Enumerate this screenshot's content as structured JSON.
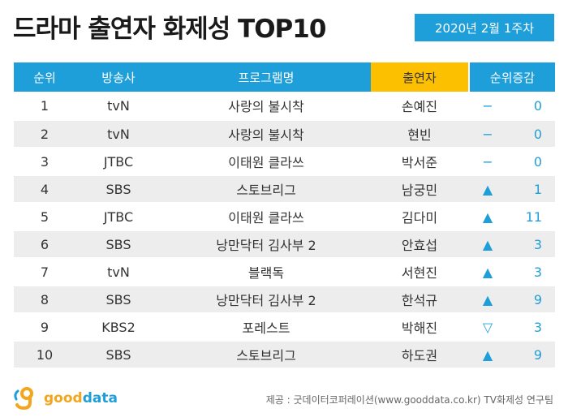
{
  "header": {
    "title": "드라마 출연자 화제성 TOP10",
    "week": "2020년 2월 1주차"
  },
  "table": {
    "columns": {
      "rank": "순위",
      "station": "방송사",
      "program": "프로그램명",
      "actor": "출연자",
      "change": "순위증감"
    },
    "rows": [
      {
        "rank": "1",
        "station": "tvN",
        "program": "사랑의 불시착",
        "actor": "손예진",
        "arrow": "−",
        "change": "0"
      },
      {
        "rank": "2",
        "station": "tvN",
        "program": "사랑의 불시착",
        "actor": "현빈",
        "arrow": "−",
        "change": "0"
      },
      {
        "rank": "3",
        "station": "JTBC",
        "program": "이태원 클라쓰",
        "actor": "박서준",
        "arrow": "−",
        "change": "0"
      },
      {
        "rank": "4",
        "station": "SBS",
        "program": "스토브리그",
        "actor": "남궁민",
        "arrow": "▲",
        "change": "1"
      },
      {
        "rank": "5",
        "station": "JTBC",
        "program": "이태원 클라쓰",
        "actor": "김다미",
        "arrow": "▲",
        "change": "11"
      },
      {
        "rank": "6",
        "station": "SBS",
        "program": "낭만닥터 김사부 2",
        "actor": "안효섭",
        "arrow": "▲",
        "change": "3"
      },
      {
        "rank": "7",
        "station": "tvN",
        "program": "블랙독",
        "actor": "서현진",
        "arrow": "▲",
        "change": "3"
      },
      {
        "rank": "8",
        "station": "SBS",
        "program": "낭만닥터 김사부 2",
        "actor": "한석규",
        "arrow": "▲",
        "change": "9"
      },
      {
        "rank": "9",
        "station": "KBS2",
        "program": "포레스트",
        "actor": "박해진",
        "arrow": "▽",
        "change": "3"
      },
      {
        "rank": "10",
        "station": "SBS",
        "program": "스토브리그",
        "actor": "하도권",
        "arrow": "▲",
        "change": "9"
      }
    ]
  },
  "footer": {
    "logo_good": "good",
    "logo_data": "data",
    "credit": "제공 : 굿데이터코퍼레이션(www.gooddata.co.kr) TV화제성 연구팀"
  },
  "colors": {
    "accent": "#1f9fd9",
    "highlight": "#fcc000",
    "row_shade": "#ededed",
    "logo_orange": "#f3a51c"
  }
}
